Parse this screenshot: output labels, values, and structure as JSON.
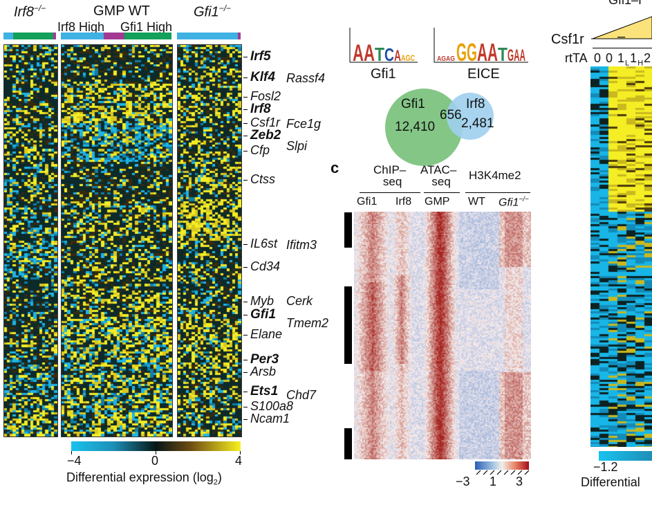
{
  "panel_a": {
    "group_labels": {
      "irf8_ko": "Irf8",
      "irf8_sup": "−/−",
      "gmp_wt": "GMP WT",
      "gfi1_ko": "Gfi1",
      "gfi1_sup": "−/−"
    },
    "subgroup_labels": {
      "irf8_high": "Irf8 High",
      "gfi1_high": "Gfi1 High"
    },
    "colorbar": {
      "min": "−4",
      "mid": "0",
      "max": "4",
      "title": "Differential expression (log",
      "title_sub": "2",
      "title_end": ")"
    },
    "genes": [
      {
        "name": "Irf5",
        "bold": true
      },
      {
        "name": "Klf4",
        "bold": true
      },
      {
        "name": "Rassf4",
        "bold": false
      },
      {
        "name": "Fosl2",
        "bold": false
      },
      {
        "name": "Irf8",
        "bold": true
      },
      {
        "name": "Csf1r",
        "bold": false
      },
      {
        "name": "Fce1g",
        "bold": false
      },
      {
        "name": "Zeb2",
        "bold": true
      },
      {
        "name": "Slpi",
        "bold": false
      },
      {
        "name": "Cfp",
        "bold": false
      },
      {
        "name": "Ctss",
        "bold": false
      },
      {
        "name": "IL6st",
        "bold": false
      },
      {
        "name": "Ifitm3",
        "bold": false
      },
      {
        "name": "Cd34",
        "bold": false
      },
      {
        "name": "Myb",
        "bold": false
      },
      {
        "name": "Cerk",
        "bold": false
      },
      {
        "name": "Gfi1",
        "bold": true
      },
      {
        "name": "Tmem2",
        "bold": false
      },
      {
        "name": "Elane",
        "bold": false
      },
      {
        "name": "Per3",
        "bold": true
      },
      {
        "name": "Arsb",
        "bold": false
      },
      {
        "name": "Ets1",
        "bold": true
      },
      {
        "name": "Chd7",
        "bold": false
      },
      {
        "name": "S100a8",
        "bold": false
      },
      {
        "name": "Ncam1",
        "bold": false
      }
    ]
  },
  "panel_b": {
    "motif_labels": [
      "Gfi1",
      "EICE"
    ],
    "venn": {
      "left_name": "Gfi1",
      "left_count": "12,410",
      "overlap": "656",
      "right_name": "Irf8",
      "right_count": "2,481"
    }
  },
  "panel_c": {
    "letter": "c",
    "headers": {
      "chip": "ChIP–",
      "chip2": "seq",
      "atac": "ATAC–",
      "atac2": "seq",
      "h3k": "H3K4me2"
    },
    "columns": [
      "Gfi1",
      "Irf8",
      "GMP",
      "WT",
      "Gfi1"
    ],
    "gfi1_sup": "−/−",
    "colorbar": {
      "min": "−3",
      "mid": "1",
      "max": "3"
    }
  },
  "panel_d": {
    "title_fragment": "Gfi1–I",
    "row1_label": "Csf1r",
    "row1_value": "–",
    "row2_label": "rtTA",
    "row2_values": "0 0 1",
    "sub_l": "L",
    "one": "1",
    "sub_h": "H",
    "two": "2",
    "colorbar_min": "−1.2",
    "colorbar_title": "Differential"
  }
}
